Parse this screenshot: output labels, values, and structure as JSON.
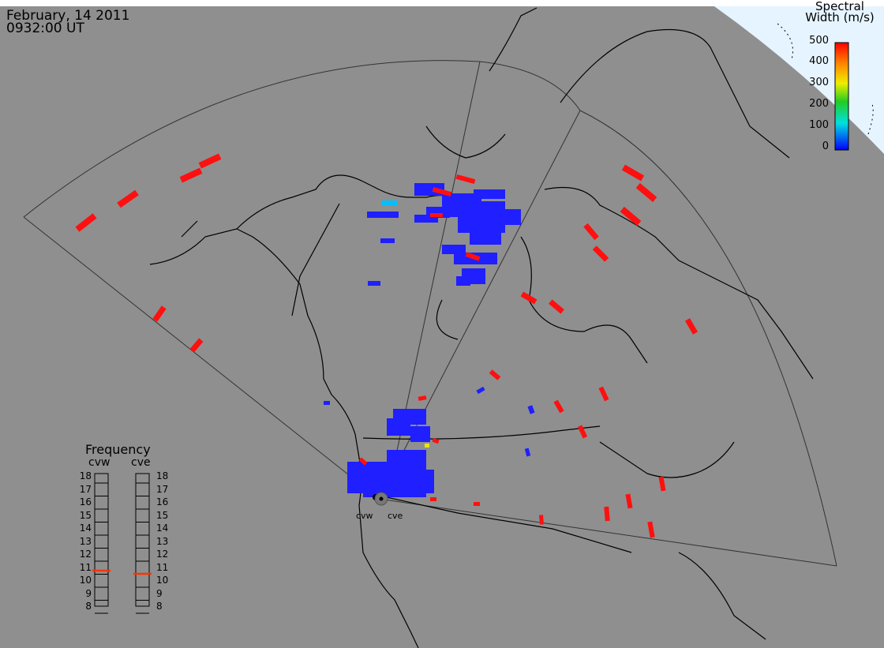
{
  "header": {
    "date": "February, 14 2011",
    "time": "0932:00 UT"
  },
  "colorbar": {
    "title_line1": "Spectral",
    "title_line2": "Width (m/s)",
    "ticks": [
      "500",
      "400",
      "300",
      "200",
      "100",
      "0"
    ],
    "colors": [
      "#ff0000",
      "#ffaa00",
      "#e8e800",
      "#22cc22",
      "#00e8e8",
      "#0000ff"
    ]
  },
  "frequency_panel": {
    "title": "Frequency",
    "radar_left": "cvw",
    "radar_right": "cve",
    "scale": [
      "18",
      "17",
      "16",
      "15",
      "14",
      "13",
      "12",
      "11",
      "10",
      "9",
      "8"
    ],
    "cvw_value_mhz": 10.7,
    "cve_value_mhz": 10.5
  },
  "stations": {
    "left": "cvw",
    "right": "cve"
  },
  "colors": {
    "background": "#8f8f8f",
    "sky": "#e6f4ff",
    "low": "#1f1fff",
    "high": "#ff1010",
    "coast": "#000000"
  }
}
